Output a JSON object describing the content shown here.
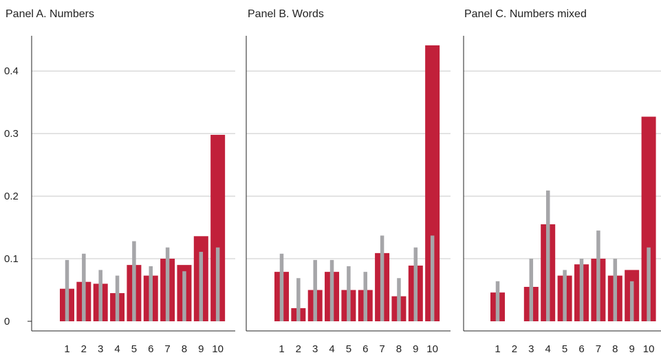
{
  "chart_data": {
    "type": "bar",
    "colors": {
      "primary": "#c1203a",
      "secondary": "#a6a6a9",
      "grid": "#c8c8c8",
      "axis": "#222222"
    },
    "ylim": [
      0,
      0.45
    ],
    "yticks": [
      0,
      0.1,
      0.2,
      0.3,
      0.4
    ],
    "ytick_labels": [
      "0",
      "0.1",
      "0.2",
      "0.3",
      "0.4"
    ],
    "categories": [
      "1",
      "2",
      "3",
      "4",
      "5",
      "6",
      "7",
      "8",
      "9",
      "10"
    ],
    "grid": true,
    "panels": [
      {
        "title": "Panel A. Numbers",
        "series": [
          {
            "values": [
              0.052,
              0.063,
              0.06,
              0.045,
              0.09,
              0.073,
              0.1,
              0.09,
              0.136,
              0.298
            ]
          },
          {
            "values": [
              0.098,
              0.108,
              0.082,
              0.073,
              0.128,
              0.088,
              0.118,
              0.08,
              0.111,
              0.118
            ]
          }
        ]
      },
      {
        "title": "Panel B. Words",
        "series": [
          {
            "values": [
              0.079,
              0.021,
              0.05,
              0.079,
              0.05,
              0.05,
              0.109,
              0.04,
              0.089,
              0.441
            ]
          },
          {
            "values": [
              0.108,
              0.069,
              0.098,
              0.098,
              0.088,
              0.079,
              0.137,
              0.069,
              0.118,
              0.137
            ]
          }
        ]
      },
      {
        "title": "Panel C. Numbers mixed",
        "series": [
          {
            "values": [
              0.046,
              0,
              0.055,
              0.155,
              0.073,
              0.091,
              0.1,
              0.073,
              0.082,
              0.327
            ]
          },
          {
            "values": [
              0.064,
              0,
              0.1,
              0.209,
              0.082,
              0.1,
              0.145,
              0.1,
              0.064,
              0.118
            ]
          }
        ]
      }
    ]
  }
}
